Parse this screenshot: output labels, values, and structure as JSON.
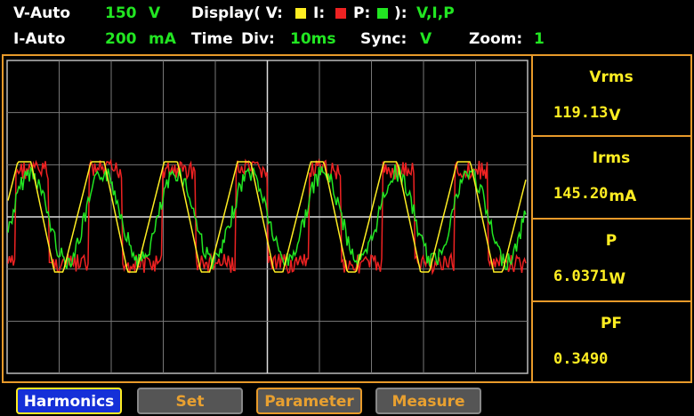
{
  "header": {
    "v_range": {
      "label": "V-Auto",
      "value": "150",
      "unit": "V"
    },
    "i_range": {
      "label": "I-Auto",
      "value": "200",
      "unit": "mA"
    },
    "display": {
      "label": "Display( V:",
      "i": "I:",
      "p": "P:",
      "close": "):",
      "value": "V,I,P"
    },
    "time_div": {
      "label": "Time",
      "div": "Div:",
      "value": "10ms"
    },
    "sync": {
      "label": "Sync:",
      "value": "V"
    },
    "zoom": {
      "label": "Zoom:",
      "value": "1"
    }
  },
  "readings": [
    {
      "label": "Vrms",
      "value": "119.13",
      "unit": "V"
    },
    {
      "label": "Irms",
      "value": "145.20",
      "unit": "mA"
    },
    {
      "label": "P",
      "value": "6.0371",
      "unit": "W"
    },
    {
      "label": "PF",
      "value": "0.3490"
    }
  ],
  "buttons": [
    "Harmonics",
    "Set",
    "Parameter",
    "Measure"
  ]
}
